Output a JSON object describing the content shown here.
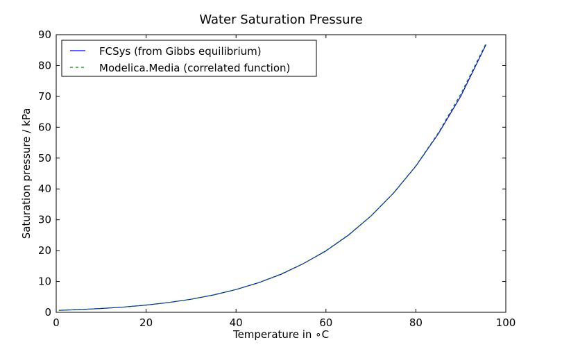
{
  "chart_data": {
    "type": "line",
    "title": "Water Saturation Pressure",
    "xlabel": "Temperature in ∘C",
    "ylabel": "Saturation pressure / kPa",
    "xlim": [
      0,
      100
    ],
    "ylim": [
      0,
      90
    ],
    "xticks": [
      0,
      20,
      40,
      60,
      80,
      100
    ],
    "yticks": [
      0,
      10,
      20,
      30,
      40,
      50,
      60,
      70,
      80,
      90
    ],
    "grid": false,
    "legend_position": "top-left",
    "series": [
      {
        "name": "FCSys (from Gibbs equilibrium)",
        "color": "#0000ff",
        "style": "solid",
        "x": [
          0.6,
          5,
          10,
          15,
          20,
          25,
          30,
          35,
          40,
          45,
          50,
          55,
          60,
          65,
          70,
          75,
          80,
          85,
          90,
          95.6
        ],
        "y": [
          0.63,
          0.87,
          1.23,
          1.7,
          2.34,
          3.17,
          4.24,
          5.63,
          7.38,
          9.59,
          12.3,
          15.8,
          19.9,
          25.0,
          31.2,
          38.6,
          47.4,
          57.9,
          70.1,
          86.8
        ]
      },
      {
        "name": "Modelica.Media (correlated function)",
        "color": "#008000",
        "style": "dashed",
        "x": [
          0.6,
          5,
          10,
          15,
          20,
          25,
          30,
          35,
          40,
          45,
          50,
          55,
          60,
          65,
          70,
          75,
          80,
          85,
          90,
          95.6
        ],
        "y": [
          0.64,
          0.87,
          1.23,
          1.71,
          2.34,
          3.17,
          4.25,
          5.63,
          7.39,
          9.6,
          12.4,
          15.8,
          20.0,
          25.1,
          31.2,
          38.6,
          47.5,
          58.2,
          70.8,
          87.2
        ]
      }
    ]
  }
}
